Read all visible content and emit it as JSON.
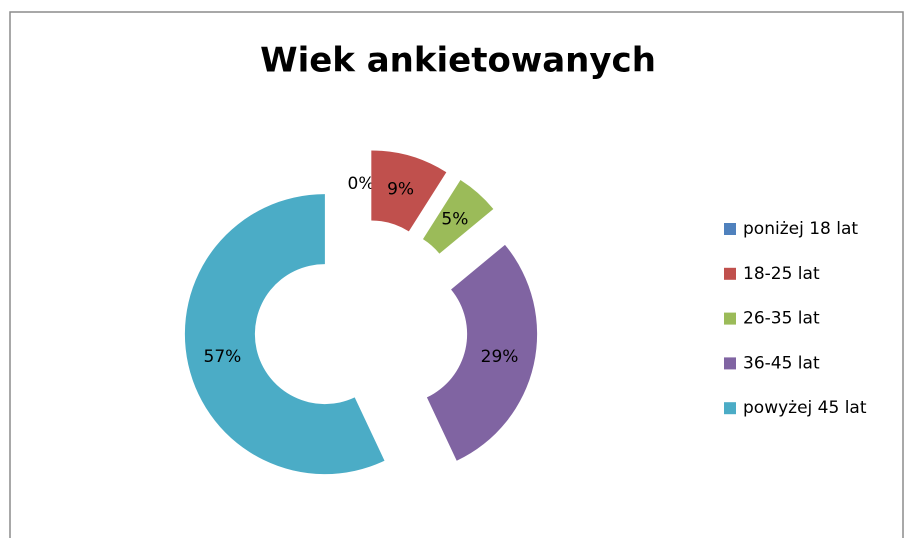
{
  "chart_data": {
    "type": "doughnut",
    "title": "Wiek ankietowanych",
    "categories": [
      "poniżej 18 lat",
      "18-25 lat",
      "26-35 lat",
      "36-45 lat",
      "powyżej 45 lat"
    ],
    "values": [
      0,
      9,
      5,
      29,
      57
    ],
    "value_labels": [
      "0%",
      "9%",
      "5%",
      "29%",
      "57%"
    ],
    "colors": [
      "#4f81bd",
      "#c0504d",
      "#9bbb59",
      "#8064a2",
      "#4bacc6"
    ],
    "legend": "right"
  }
}
